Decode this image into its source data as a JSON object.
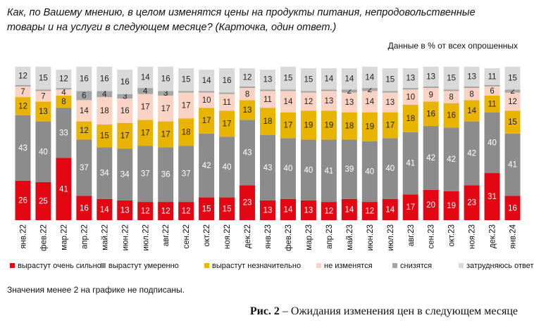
{
  "chart_data": {
    "type": "bar",
    "stacked": true,
    "title": [
      "Как, по Вашему мнению, в целом изменятся цены  на продукты питания, непродовольственные",
      "товары  и на услуги в следующем месяце? (Карточка, один ответ.)"
    ],
    "subtitle": "Данные в % от всех опрошенных",
    "footnote": "Значения менее 2 на графике не подписаны.",
    "caption_label": "Рис. 2",
    "caption_text": " – Ожидания изменения цен в следующем месяце",
    "ylim": [
      0,
      100
    ],
    "categories": [
      "янв.22",
      "фев.22",
      "мар.22",
      "апр.22",
      "май.22",
      "июн.22",
      "июл.22",
      "авг.22",
      "сен.22",
      "окт.22",
      "ноя.22",
      "дек.22",
      "янв.23",
      "фев.23",
      "мар.23",
      "апр.23",
      "май.23",
      "июн.23",
      "июл.23",
      "авг.23",
      "сен.23",
      "окт.23",
      "ноя.23",
      "дек.23",
      "янв.24"
    ],
    "series": [
      {
        "name": "вырастут очень сильно",
        "color": "#e30613",
        "label_color": "#ffffff",
        "values": [
          26,
          25,
          41,
          16,
          14,
          13,
          12,
          12,
          12,
          15,
          15,
          23,
          13,
          14,
          13,
          12,
          14,
          12,
          14,
          17,
          20,
          19,
          23,
          31,
          16
        ]
      },
      {
        "name": "вырастут умеренно",
        "color": "#8c8c8c",
        "label_color": "#ffffff",
        "values": [
          43,
          40,
          33,
          37,
          34,
          34,
          37,
          36,
          37,
          42,
          40,
          43,
          43,
          40,
          40,
          41,
          39,
          40,
          40,
          41,
          42,
          42,
          42,
          40,
          41
        ]
      },
      {
        "name": "вырастут незначительно",
        "color": "#e8b400",
        "label_color": "#222222",
        "values": [
          12,
          13,
          8,
          12,
          15,
          17,
          17,
          17,
          18,
          17,
          17,
          13,
          18,
          17,
          19,
          19,
          18,
          19,
          17,
          18,
          16,
          16,
          14,
          11,
          15
        ]
      },
      {
        "name": "не изменятся",
        "color": "#fbd3c4",
        "label_color": "#222222",
        "values": [
          7,
          7,
          4,
          14,
          18,
          16,
          17,
          17,
          17,
          10,
          11,
          8,
          11,
          14,
          12,
          13,
          13,
          14,
          13,
          10,
          9,
          8,
          8,
          6,
          12
        ]
      },
      {
        "name": "снизятся",
        "color": "#a5a5a5",
        "label_color": "#222222",
        "values": [
          1,
          1,
          1,
          6,
          4,
          3,
          4,
          3,
          1,
          1,
          1,
          1,
          1,
          1,
          1,
          1,
          2,
          2,
          1,
          1,
          1,
          1,
          1,
          1,
          2
        ]
      },
      {
        "name": "затрудняюсь ответить",
        "color": "#d9d9d9",
        "label_color": "#222222",
        "values": [
          12,
          15,
          12,
          16,
          16,
          16,
          14,
          16,
          15,
          14,
          16,
          12,
          13,
          15,
          15,
          14,
          14,
          14,
          15,
          13,
          13,
          15,
          13,
          11,
          15
        ]
      }
    ]
  }
}
